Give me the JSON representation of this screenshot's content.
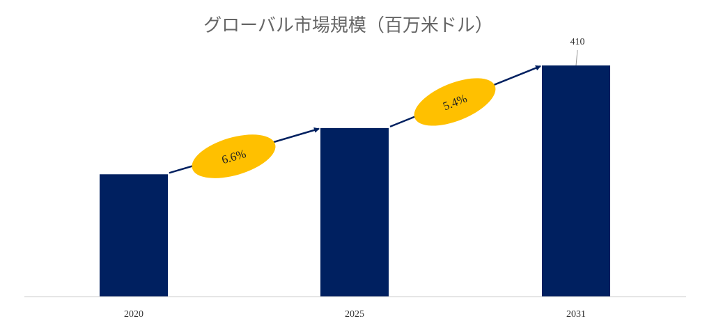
{
  "chart_data": {
    "type": "bar",
    "title": "グローバル市場規模（百万米ドル）",
    "xlabel": "",
    "ylabel": "",
    "categories": [
      "2020",
      "2025",
      "2031"
    ],
    "values": [
      217,
      299,
      410
    ],
    "data_labels": [
      "",
      "",
      "410"
    ],
    "ylim": [
      0,
      410
    ],
    "grid": false,
    "annotations": [
      {
        "from": "2020",
        "to": "2025",
        "text": "6.6%"
      },
      {
        "from": "2025",
        "to": "2031",
        "text": "5.4%"
      }
    ],
    "colors": {
      "bar": "#002060",
      "arrow": "#002060",
      "badge": "#FFC000"
    }
  }
}
